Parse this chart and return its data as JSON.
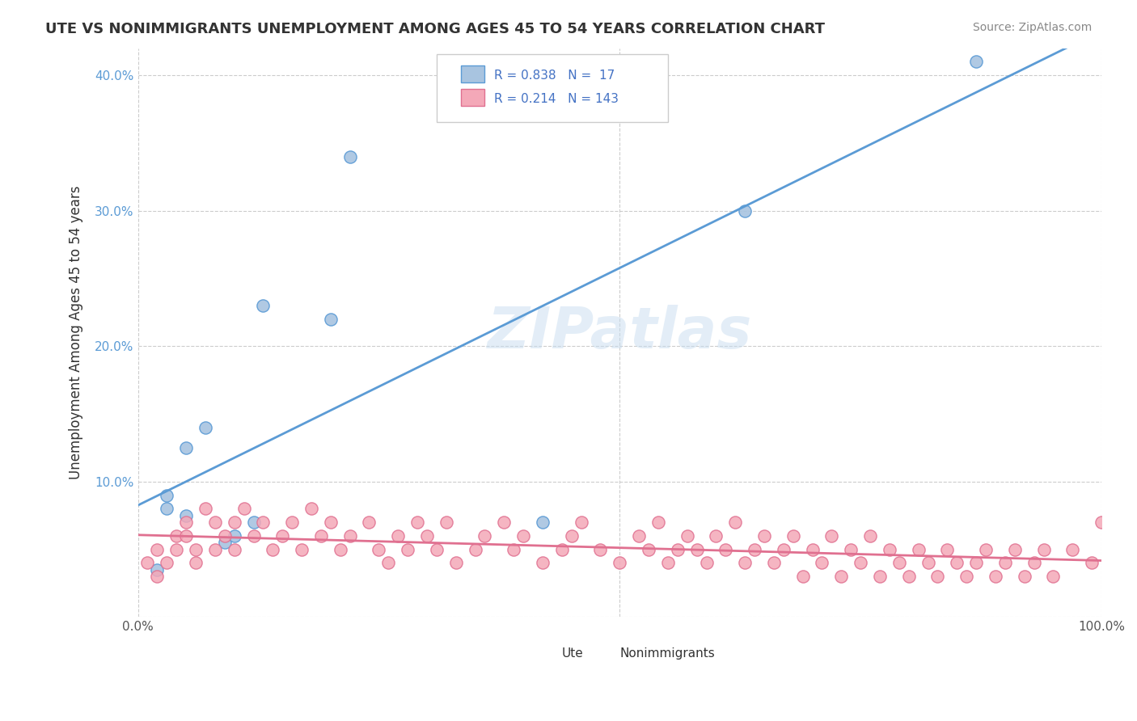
{
  "title": "UTE VS NONIMMIGRANTS UNEMPLOYMENT AMONG AGES 45 TO 54 YEARS CORRELATION CHART",
  "source": "Source: ZipAtlas.com",
  "xlabel": "",
  "ylabel": "Unemployment Among Ages 45 to 54 years",
  "xlim": [
    0,
    1.0
  ],
  "ylim": [
    0,
    0.42
  ],
  "xticks": [
    0.0,
    0.1,
    0.2,
    0.3,
    0.4,
    0.5,
    0.6,
    0.7,
    0.8,
    0.9,
    1.0
  ],
  "xticklabels": [
    "0.0%",
    "",
    "",
    "",
    "",
    "",
    "",
    "",
    "",
    "",
    "100.0%"
  ],
  "yticks": [
    0.0,
    0.1,
    0.2,
    0.3,
    0.4
  ],
  "yticklabels": [
    "",
    "10.0%",
    "20.0%",
    "30.0%",
    "40.0%"
  ],
  "ute_R": 0.838,
  "ute_N": 17,
  "nonimm_R": 0.214,
  "nonimm_N": 143,
  "ute_color": "#a8c4e0",
  "nonimm_color": "#f4a8b8",
  "ute_line_color": "#5b9bd5",
  "nonimm_line_color": "#e07090",
  "legend_text_color": "#4472c4",
  "watermark": "ZIPatlas",
  "background_color": "#ffffff",
  "grid_color": "#cccccc",
  "ute_scatter_x": [
    0.02,
    0.03,
    0.03,
    0.05,
    0.05,
    0.07,
    0.09,
    0.1,
    0.12,
    0.13,
    0.2,
    0.22,
    0.42,
    0.63,
    0.87
  ],
  "ute_scatter_y": [
    0.035,
    0.08,
    0.09,
    0.125,
    0.075,
    0.14,
    0.055,
    0.06,
    0.07,
    0.23,
    0.22,
    0.34,
    0.07,
    0.3,
    0.41
  ],
  "nonimm_scatter_x": [
    0.01,
    0.02,
    0.02,
    0.03,
    0.04,
    0.04,
    0.05,
    0.05,
    0.06,
    0.06,
    0.07,
    0.08,
    0.08,
    0.09,
    0.1,
    0.1,
    0.11,
    0.12,
    0.13,
    0.14,
    0.15,
    0.16,
    0.17,
    0.18,
    0.19,
    0.2,
    0.21,
    0.22,
    0.24,
    0.25,
    0.26,
    0.27,
    0.28,
    0.29,
    0.3,
    0.31,
    0.32,
    0.33,
    0.35,
    0.36,
    0.38,
    0.39,
    0.4,
    0.42,
    0.44,
    0.45,
    0.46,
    0.48,
    0.5,
    0.52,
    0.53,
    0.54,
    0.55,
    0.56,
    0.57,
    0.58,
    0.59,
    0.6,
    0.61,
    0.62,
    0.63,
    0.64,
    0.65,
    0.66,
    0.67,
    0.68,
    0.69,
    0.7,
    0.71,
    0.72,
    0.73,
    0.74,
    0.75,
    0.76,
    0.77,
    0.78,
    0.79,
    0.8,
    0.81,
    0.82,
    0.83,
    0.84,
    0.85,
    0.86,
    0.87,
    0.88,
    0.89,
    0.9,
    0.91,
    0.92,
    0.93,
    0.94,
    0.95,
    0.97,
    0.99,
    1.0
  ],
  "nonimm_scatter_y": [
    0.04,
    0.03,
    0.05,
    0.04,
    0.06,
    0.05,
    0.07,
    0.06,
    0.04,
    0.05,
    0.08,
    0.05,
    0.07,
    0.06,
    0.07,
    0.05,
    0.08,
    0.06,
    0.07,
    0.05,
    0.06,
    0.07,
    0.05,
    0.08,
    0.06,
    0.07,
    0.05,
    0.06,
    0.07,
    0.05,
    0.04,
    0.06,
    0.05,
    0.07,
    0.06,
    0.05,
    0.07,
    0.04,
    0.05,
    0.06,
    0.07,
    0.05,
    0.06,
    0.04,
    0.05,
    0.06,
    0.07,
    0.05,
    0.04,
    0.06,
    0.05,
    0.07,
    0.04,
    0.05,
    0.06,
    0.05,
    0.04,
    0.06,
    0.05,
    0.07,
    0.04,
    0.05,
    0.06,
    0.04,
    0.05,
    0.06,
    0.03,
    0.05,
    0.04,
    0.06,
    0.03,
    0.05,
    0.04,
    0.06,
    0.03,
    0.05,
    0.04,
    0.03,
    0.05,
    0.04,
    0.03,
    0.05,
    0.04,
    0.03,
    0.04,
    0.05,
    0.03,
    0.04,
    0.05,
    0.03,
    0.04,
    0.05,
    0.03,
    0.05,
    0.04,
    0.07
  ]
}
